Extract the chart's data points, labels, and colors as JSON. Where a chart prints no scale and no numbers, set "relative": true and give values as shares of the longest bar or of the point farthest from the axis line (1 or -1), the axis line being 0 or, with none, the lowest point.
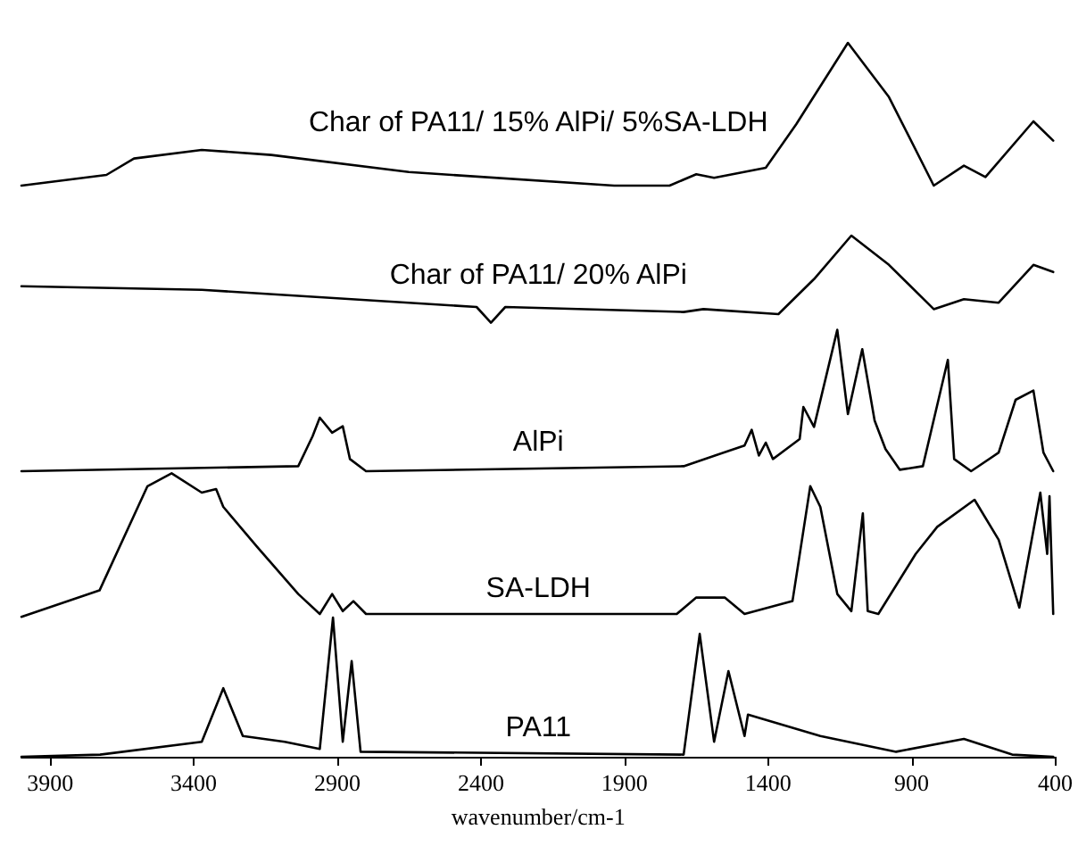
{
  "chart_data": {
    "type": "line",
    "relative": true,
    "xlabel": "wavenumber/cm-1",
    "xlim": [
      4000,
      400
    ],
    "xticks": [
      3900,
      3400,
      2900,
      2400,
      1900,
      1400,
      900,
      400
    ],
    "grid": false,
    "legend": false,
    "marker": "none",
    "line_style": "solid",
    "series": [
      {
        "name": "Char of PA11/ 15% AlPi/ 5%SA-LDH",
        "color": "#000000",
        "x": [
          4000,
          3704,
          3608,
          3372,
          3130,
          2651,
          1936,
          1743,
          1650,
          1588,
          1408,
          1302,
          1122,
          979,
          823,
          718,
          643,
          476,
          407
        ],
        "values": [
          0.8,
          0.815,
          0.838,
          0.85,
          0.843,
          0.819,
          0.8,
          0.8,
          0.816,
          0.811,
          0.825,
          0.886,
          1.0,
          0.924,
          0.8,
          0.828,
          0.812,
          0.89,
          0.863
        ]
      },
      {
        "name": "Char of PA11/ 20% AlPi",
        "color": "#000000",
        "x": [
          4000,
          3372,
          2415,
          2365,
          2315,
          1694,
          1625,
          1364,
          1240,
          1110,
          979,
          823,
          718,
          597,
          476,
          407
        ],
        "values": [
          0.659,
          0.654,
          0.63,
          0.608,
          0.63,
          0.623,
          0.627,
          0.62,
          0.669,
          0.73,
          0.689,
          0.627,
          0.641,
          0.636,
          0.689,
          0.679
        ]
      },
      {
        "name": "AlPi",
        "color": "#000000",
        "x": [
          4000,
          3036,
          2986,
          2961,
          2918,
          2881,
          2856,
          2800,
          1694,
          1482,
          1457,
          1432,
          1408,
          1383,
          1290,
          1277,
          1240,
          1159,
          1122,
          1072,
          1029,
          991,
          941,
          861,
          774,
          752,
          693,
          597,
          538,
          476,
          441,
          407
        ],
        "values": [
          0.4,
          0.407,
          0.449,
          0.475,
          0.454,
          0.463,
          0.417,
          0.4,
          0.407,
          0.436,
          0.458,
          0.422,
          0.44,
          0.417,
          0.445,
          0.49,
          0.462,
          0.598,
          0.48,
          0.571,
          0.471,
          0.431,
          0.402,
          0.407,
          0.556,
          0.417,
          0.4,
          0.426,
          0.5,
          0.513,
          0.426,
          0.4
        ]
      },
      {
        "name": "SA-LDH",
        "color": "#000000",
        "x": [
          4000,
          3728,
          3561,
          3477,
          3372,
          3322,
          3297,
          3179,
          3036,
          2961,
          2918,
          2881,
          2844,
          2800,
          1718,
          1650,
          1551,
          1482,
          1315,
          1253,
          1218,
          1159,
          1110,
          1070,
          1053,
          1016,
          886,
          811,
          681,
          597,
          525,
          452,
          428,
          420,
          407
        ],
        "values": [
          0.196,
          0.233,
          0.379,
          0.397,
          0.37,
          0.375,
          0.35,
          0.294,
          0.228,
          0.2,
          0.228,
          0.204,
          0.218,
          0.2,
          0.2,
          0.223,
          0.223,
          0.2,
          0.218,
          0.379,
          0.35,
          0.228,
          0.204,
          0.341,
          0.204,
          0.2,
          0.284,
          0.322,
          0.36,
          0.304,
          0.209,
          0.37,
          0.284,
          0.365,
          0.2
        ]
      },
      {
        "name": "PA11",
        "color": "#000000",
        "x": [
          4000,
          3726,
          3372,
          3297,
          3229,
          3083,
          2961,
          2915,
          2881,
          2850,
          2819,
          1694,
          1638,
          1588,
          1538,
          1482,
          1470,
          1218,
          954,
          718,
          550,
          407
        ],
        "values": [
          0,
          0.003,
          0.021,
          0.096,
          0.029,
          0.021,
          0.011,
          0.195,
          0.021,
          0.134,
          0.007,
          0.003,
          0.172,
          0.021,
          0.12,
          0.029,
          0.059,
          0.029,
          0.007,
          0.025,
          0.003,
          0
        ]
      }
    ]
  }
}
